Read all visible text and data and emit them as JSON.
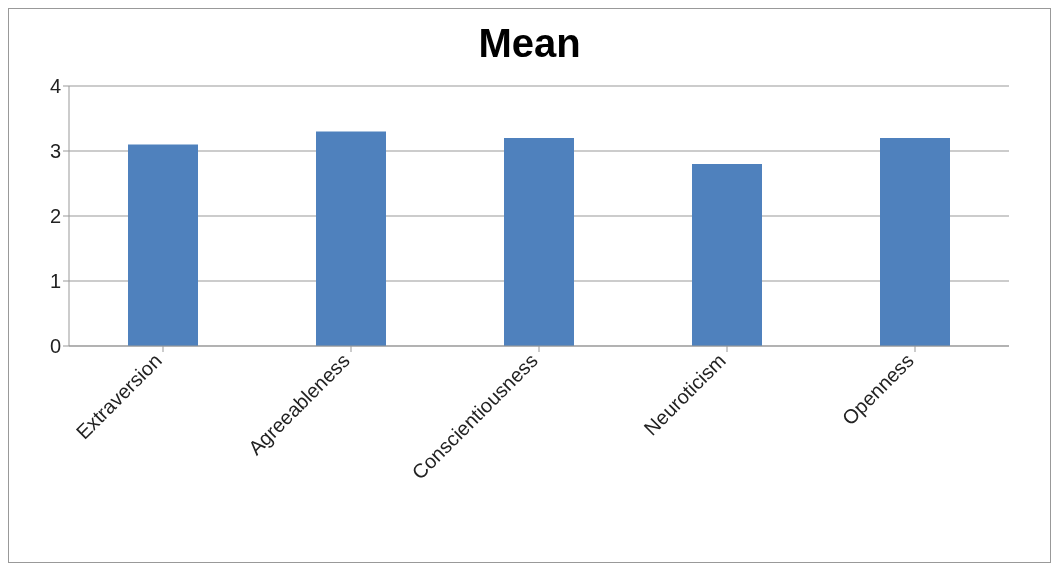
{
  "chart_data": {
    "type": "bar",
    "title": "Mean",
    "categories": [
      "Extraversion",
      "Agreeableness",
      "Conscientiousness",
      "Neuroticism",
      "Openness"
    ],
    "values": [
      3.1,
      3.3,
      3.2,
      2.8,
      3.2
    ],
    "color": "#4f81bd",
    "ylim": [
      0,
      4
    ],
    "yticks": [
      0,
      1,
      2,
      3,
      4
    ],
    "grid": "y",
    "legend": false
  }
}
